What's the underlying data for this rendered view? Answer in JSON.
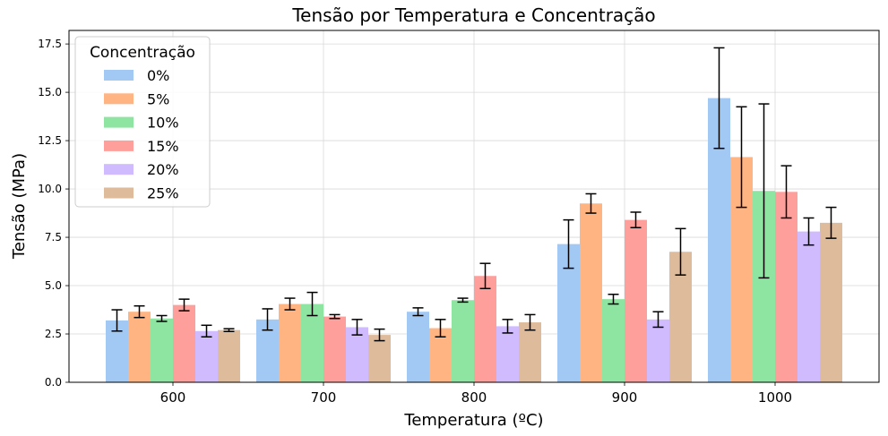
{
  "chart_data": {
    "type": "bar",
    "title": "Tensão por Temperatura e Concentração",
    "xlabel": "Temperatura (ºC)",
    "ylabel": "Tensão (MPa)",
    "categories": [
      "600",
      "700",
      "800",
      "900",
      "1000"
    ],
    "ylim": [
      0,
      18.2
    ],
    "yticks": [
      "0.0",
      "2.5",
      "5.0",
      "7.5",
      "10.0",
      "12.5",
      "15.0",
      "17.5"
    ],
    "grid": true,
    "legend": {
      "title": "Concentração",
      "placement": "top-left"
    },
    "series": [
      {
        "name": "0%",
        "color": "#a1c9f4",
        "values": [
          3.2,
          3.25,
          3.65,
          7.15,
          14.7
        ],
        "errors": [
          0.55,
          0.55,
          0.2,
          1.25,
          2.6
        ]
      },
      {
        "name": "5%",
        "color": "#ffb482",
        "values": [
          3.65,
          4.05,
          2.8,
          9.25,
          11.65
        ],
        "errors": [
          0.3,
          0.3,
          0.45,
          0.5,
          2.6
        ]
      },
      {
        "name": "10%",
        "color": "#8de5a1",
        "values": [
          3.3,
          4.05,
          4.25,
          4.3,
          9.9
        ],
        "errors": [
          0.15,
          0.6,
          0.1,
          0.25,
          4.5
        ]
      },
      {
        "name": "15%",
        "color": "#ff9f9b",
        "values": [
          4.0,
          3.4,
          5.5,
          8.4,
          9.85
        ],
        "errors": [
          0.3,
          0.1,
          0.65,
          0.4,
          1.35
        ]
      },
      {
        "name": "20%",
        "color": "#d0bbff",
        "values": [
          2.65,
          2.85,
          2.9,
          3.25,
          7.8
        ],
        "errors": [
          0.3,
          0.4,
          0.35,
          0.4,
          0.7
        ]
      },
      {
        "name": "25%",
        "color": "#debb9b",
        "values": [
          2.7,
          2.45,
          3.1,
          6.75,
          8.25
        ],
        "errors": [
          0.07,
          0.3,
          0.4,
          1.2,
          0.8
        ]
      }
    ]
  }
}
